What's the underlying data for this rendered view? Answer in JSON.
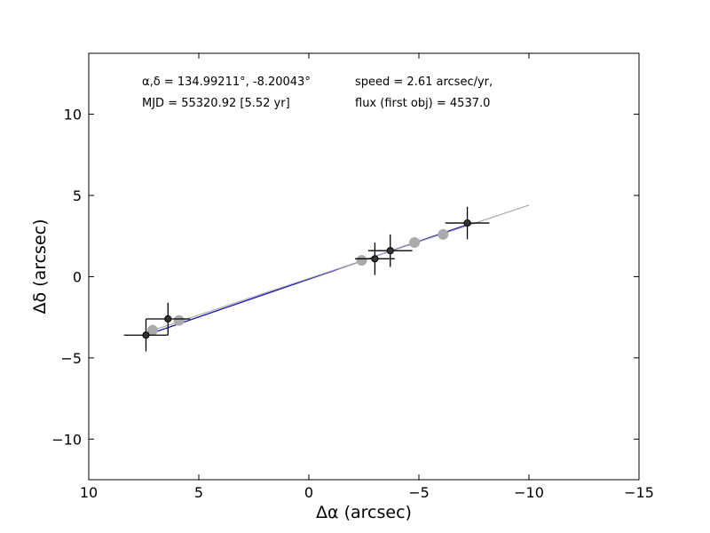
{
  "chart_data": {
    "type": "scatter",
    "title": "",
    "xlabel": "Δα (arcsec)",
    "ylabel": "Δδ (arcsec)",
    "xlim": [
      10,
      -15
    ],
    "ylim": [
      -12.5,
      13.75
    ],
    "x_ticks": [
      10,
      5,
      0,
      -5,
      -10,
      -15
    ],
    "y_ticks": [
      -10,
      -5,
      0,
      5,
      10
    ],
    "x_tick_labels": [
      "10",
      "5",
      "0",
      "−5",
      "−10",
      "−15"
    ],
    "y_tick_labels": [
      "−10",
      "−5",
      "0",
      "5",
      "10"
    ],
    "grid": false,
    "legend": "none",
    "annotations": {
      "coords": "α,δ = 134.99211°, -8.20043°",
      "speed": "speed = 2.61 arcsec/yr,",
      "mjd": "MJD = 55320.92 [5.52 yr]",
      "flux": "flux (first obj) = 4537.0"
    },
    "series": [
      {
        "role": "observed",
        "color": "#000000",
        "x": [
          7.4,
          6.4,
          -3.0,
          -3.7,
          -7.2
        ],
        "y": [
          -3.6,
          -2.6,
          1.1,
          1.6,
          3.3
        ],
        "xerr": [
          1.0,
          1.0,
          0.9,
          1.0,
          1.0
        ],
        "yerr": [
          1.0,
          1.0,
          1.0,
          1.0,
          1.0
        ]
      },
      {
        "role": "predicted",
        "color": "#aaaaaa",
        "x": [
          7.1,
          5.9,
          -2.4,
          -4.8,
          -6.1
        ],
        "y": [
          -3.3,
          -2.7,
          1.0,
          2.1,
          2.6
        ]
      }
    ],
    "lines": [
      {
        "role": "fit",
        "color": "#0000cc",
        "x": [
          7.4,
          -7.2
        ],
        "y": [
          -3.6,
          3.2
        ]
      },
      {
        "role": "motion",
        "color": "#aaaaaa",
        "x": [
          7.3,
          -10.0
        ],
        "y": [
          -3.4,
          4.4
        ]
      }
    ]
  }
}
